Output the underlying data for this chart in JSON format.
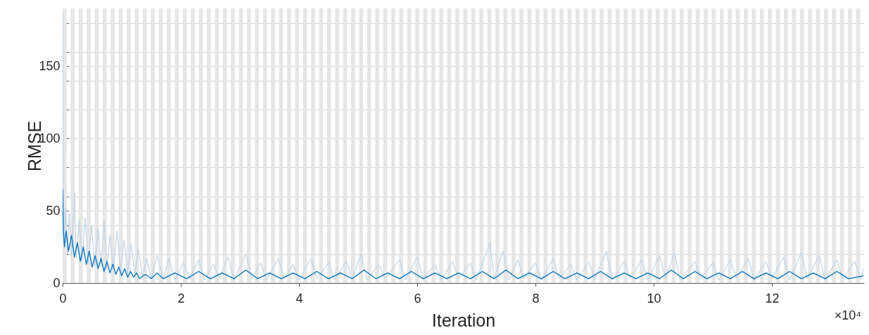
{
  "chart_data": {
    "type": "line",
    "xlabel": "Iteration",
    "ylabel": "RMSE",
    "xlim": [
      0,
      13.56
    ],
    "ylim": [
      0,
      190
    ],
    "xticks": [
      0,
      2,
      4,
      6,
      8,
      10,
      12
    ],
    "annotations": [
      "×10⁴"
    ],
    "yticks": [
      0,
      {
        "value": 20,
        "label": null
      },
      {
        "value": 40,
        "label": null
      },
      50,
      {
        "value": 60,
        "label": null
      },
      {
        "value": 80,
        "label": null
      },
      100,
      {
        "value": 120,
        "label": null
      },
      {
        "value": 140,
        "label": null
      },
      150,
      {
        "value": 160,
        "label": null
      },
      {
        "value": 180,
        "label": null
      }
    ],
    "grid": "y",
    "marker": "none",
    "line_style": "solid",
    "bands": [
      {
        "axis": "x",
        "from": 0,
        "to": 0.0678,
        "color": "#e6e6e6"
      },
      {
        "axis": "x",
        "from": 0.1356,
        "to": 0.2034,
        "color": "#e6e6e6"
      },
      {
        "axis": "x",
        "from": 0.2712,
        "to": 0.339,
        "color": "#e6e6e6"
      },
      {
        "axis": "x",
        "from": 0.4068,
        "to": 0.4746,
        "color": "#e6e6e6"
      },
      {
        "axis": "x",
        "from": 0.5424,
        "to": 0.6102,
        "color": "#e6e6e6"
      },
      {
        "axis": "x",
        "from": 0.678,
        "to": 0.7458,
        "color": "#e6e6e6"
      },
      {
        "axis": "x",
        "from": 0.8136,
        "to": 0.8814,
        "color": "#e6e6e6"
      },
      {
        "axis": "x",
        "from": 0.9492,
        "to": 1.017,
        "color": "#e6e6e6"
      },
      {
        "axis": "x",
        "from": 1.0848,
        "to": 1.1526,
        "color": "#e6e6e6"
      },
      {
        "axis": "x",
        "from": 1.2204,
        "to": 1.2882,
        "color": "#e6e6e6"
      },
      {
        "axis": "x",
        "from": 1.356,
        "to": 1.4238,
        "color": "#e6e6e6"
      },
      {
        "axis": "x",
        "from": 1.4916,
        "to": 1.5594,
        "color": "#e6e6e6"
      },
      {
        "axis": "x",
        "from": 1.6272,
        "to": 1.695,
        "color": "#e6e6e6"
      },
      {
        "axis": "x",
        "from": 1.7628,
        "to": 1.8306,
        "color": "#e6e6e6"
      },
      {
        "axis": "x",
        "from": 1.8984,
        "to": 1.9662,
        "color": "#e6e6e6"
      },
      {
        "axis": "x",
        "from": 2.034,
        "to": 2.1018,
        "color": "#e6e6e6"
      },
      {
        "axis": "x",
        "from": 2.1696,
        "to": 2.2374,
        "color": "#e6e6e6"
      },
      {
        "axis": "x",
        "from": 2.3052,
        "to": 2.373,
        "color": "#e6e6e6"
      },
      {
        "axis": "x",
        "from": 2.4408,
        "to": 2.5086,
        "color": "#e6e6e6"
      },
      {
        "axis": "x",
        "from": 2.5764,
        "to": 2.6442,
        "color": "#e6e6e6"
      },
      {
        "axis": "x",
        "from": 2.712,
        "to": 2.7798,
        "color": "#e6e6e6"
      },
      {
        "axis": "x",
        "from": 2.8476,
        "to": 2.9154,
        "color": "#e6e6e6"
      },
      {
        "axis": "x",
        "from": 2.9832,
        "to": 3.051,
        "color": "#e6e6e6"
      },
      {
        "axis": "x",
        "from": 3.1188,
        "to": 3.1866,
        "color": "#e6e6e6"
      },
      {
        "axis": "x",
        "from": 3.2544,
        "to": 3.3222,
        "color": "#e6e6e6"
      },
      {
        "axis": "x",
        "from": 3.39,
        "to": 3.4578,
        "color": "#e6e6e6"
      },
      {
        "axis": "x",
        "from": 3.5256,
        "to": 3.5934,
        "color": "#e6e6e6"
      },
      {
        "axis": "x",
        "from": 3.6612,
        "to": 3.729,
        "color": "#e6e6e6"
      },
      {
        "axis": "x",
        "from": 3.7968,
        "to": 3.8646,
        "color": "#e6e6e6"
      },
      {
        "axis": "x",
        "from": 3.9324,
        "to": 4.0002,
        "color": "#e6e6e6"
      },
      {
        "axis": "x",
        "from": 4.068,
        "to": 4.1358,
        "color": "#e6e6e6"
      },
      {
        "axis": "x",
        "from": 4.2036,
        "to": 4.2714,
        "color": "#e6e6e6"
      },
      {
        "axis": "x",
        "from": 4.3392,
        "to": 4.407,
        "color": "#e6e6e6"
      },
      {
        "axis": "x",
        "from": 4.4748,
        "to": 4.5426,
        "color": "#e6e6e6"
      },
      {
        "axis": "x",
        "from": 4.6104,
        "to": 4.6782,
        "color": "#e6e6e6"
      },
      {
        "axis": "x",
        "from": 4.746,
        "to": 4.8138,
        "color": "#e6e6e6"
      },
      {
        "axis": "x",
        "from": 4.8816,
        "to": 4.9494,
        "color": "#e6e6e6"
      },
      {
        "axis": "x",
        "from": 5.0172,
        "to": 5.085,
        "color": "#e6e6e6"
      },
      {
        "axis": "x",
        "from": 5.1528,
        "to": 5.2206,
        "color": "#e6e6e6"
      },
      {
        "axis": "x",
        "from": 5.2884,
        "to": 5.3562,
        "color": "#e6e6e6"
      },
      {
        "axis": "x",
        "from": 5.424,
        "to": 5.4918,
        "color": "#e6e6e6"
      },
      {
        "axis": "x",
        "from": 5.5596,
        "to": 5.6274,
        "color": "#e6e6e6"
      },
      {
        "axis": "x",
        "from": 5.6952,
        "to": 5.763,
        "color": "#e6e6e6"
      },
      {
        "axis": "x",
        "from": 5.8308,
        "to": 5.8986,
        "color": "#e6e6e6"
      },
      {
        "axis": "x",
        "from": 5.9664,
        "to": 6.0342,
        "color": "#e6e6e6"
      },
      {
        "axis": "x",
        "from": 6.102,
        "to": 6.1698,
        "color": "#e6e6e6"
      },
      {
        "axis": "x",
        "from": 6.2376,
        "to": 6.3054,
        "color": "#e6e6e6"
      },
      {
        "axis": "x",
        "from": 6.3732,
        "to": 6.441,
        "color": "#e6e6e6"
      },
      {
        "axis": "x",
        "from": 6.5088,
        "to": 6.5766,
        "color": "#e6e6e6"
      },
      {
        "axis": "x",
        "from": 6.6444,
        "to": 6.7122,
        "color": "#e6e6e6"
      },
      {
        "axis": "x",
        "from": 6.78,
        "to": 6.8478,
        "color": "#e6e6e6"
      },
      {
        "axis": "x",
        "from": 6.9156,
        "to": 6.9834,
        "color": "#e6e6e6"
      },
      {
        "axis": "x",
        "from": 7.0512,
        "to": 7.119,
        "color": "#e6e6e6"
      },
      {
        "axis": "x",
        "from": 7.1868,
        "to": 7.2546,
        "color": "#e6e6e6"
      },
      {
        "axis": "x",
        "from": 7.3224,
        "to": 7.3902,
        "color": "#e6e6e6"
      },
      {
        "axis": "x",
        "from": 7.458,
        "to": 7.5258,
        "color": "#e6e6e6"
      },
      {
        "axis": "x",
        "from": 7.5936,
        "to": 7.6614,
        "color": "#e6e6e6"
      },
      {
        "axis": "x",
        "from": 7.7292,
        "to": 7.797,
        "color": "#e6e6e6"
      },
      {
        "axis": "x",
        "from": 7.8648,
        "to": 7.9326,
        "color": "#e6e6e6"
      },
      {
        "axis": "x",
        "from": 8.0004,
        "to": 8.0682,
        "color": "#e6e6e6"
      },
      {
        "axis": "x",
        "from": 8.136,
        "to": 8.2038,
        "color": "#e6e6e6"
      },
      {
        "axis": "x",
        "from": 8.2716,
        "to": 8.3394,
        "color": "#e6e6e6"
      },
      {
        "axis": "x",
        "from": 8.4072,
        "to": 8.475,
        "color": "#e6e6e6"
      },
      {
        "axis": "x",
        "from": 8.5428,
        "to": 8.6106,
        "color": "#e6e6e6"
      },
      {
        "axis": "x",
        "from": 8.6784,
        "to": 8.7462,
        "color": "#e6e6e6"
      },
      {
        "axis": "x",
        "from": 8.814,
        "to": 8.8818,
        "color": "#e6e6e6"
      },
      {
        "axis": "x",
        "from": 8.9496,
        "to": 9.0174,
        "color": "#e6e6e6"
      },
      {
        "axis": "x",
        "from": 9.0852,
        "to": 9.153,
        "color": "#e6e6e6"
      },
      {
        "axis": "x",
        "from": 9.2208,
        "to": 9.2886,
        "color": "#e6e6e6"
      },
      {
        "axis": "x",
        "from": 9.3564,
        "to": 9.4242,
        "color": "#e6e6e6"
      },
      {
        "axis": "x",
        "from": 9.492,
        "to": 9.5598,
        "color": "#e6e6e6"
      },
      {
        "axis": "x",
        "from": 9.6276,
        "to": 9.6954,
        "color": "#e6e6e6"
      },
      {
        "axis": "x",
        "from": 9.7632,
        "to": 9.831,
        "color": "#e6e6e6"
      },
      {
        "axis": "x",
        "from": 9.8988,
        "to": 9.9666,
        "color": "#e6e6e6"
      },
      {
        "axis": "x",
        "from": 10.0344,
        "to": 10.1022,
        "color": "#e6e6e6"
      },
      {
        "axis": "x",
        "from": 10.17,
        "to": 10.2378,
        "color": "#e6e6e6"
      },
      {
        "axis": "x",
        "from": 10.3056,
        "to": 10.3734,
        "color": "#e6e6e6"
      },
      {
        "axis": "x",
        "from": 10.4412,
        "to": 10.509,
        "color": "#e6e6e6"
      },
      {
        "axis": "x",
        "from": 10.5768,
        "to": 10.6446,
        "color": "#e6e6e6"
      },
      {
        "axis": "x",
        "from": 10.7124,
        "to": 10.7802,
        "color": "#e6e6e6"
      },
      {
        "axis": "x",
        "from": 10.848,
        "to": 10.9158,
        "color": "#e6e6e6"
      },
      {
        "axis": "x",
        "from": 10.9836,
        "to": 11.0514,
        "color": "#e6e6e6"
      },
      {
        "axis": "x",
        "from": 11.1192,
        "to": 11.187,
        "color": "#e6e6e6"
      },
      {
        "axis": "x",
        "from": 11.2548,
        "to": 11.3226,
        "color": "#e6e6e6"
      },
      {
        "axis": "x",
        "from": 11.3904,
        "to": 11.4582,
        "color": "#e6e6e6"
      },
      {
        "axis": "x",
        "from": 11.526,
        "to": 11.5938,
        "color": "#e6e6e6"
      },
      {
        "axis": "x",
        "from": 11.6616,
        "to": 11.7294,
        "color": "#e6e6e6"
      },
      {
        "axis": "x",
        "from": 11.7972,
        "to": 11.865,
        "color": "#e6e6e6"
      },
      {
        "axis": "x",
        "from": 11.9328,
        "to": 12.0006,
        "color": "#e6e6e6"
      },
      {
        "axis": "x",
        "from": 12.0684,
        "to": 12.1362,
        "color": "#e6e6e6"
      },
      {
        "axis": "x",
        "from": 12.204,
        "to": 12.2718,
        "color": "#e6e6e6"
      },
      {
        "axis": "x",
        "from": 12.3396,
        "to": 12.4074,
        "color": "#e6e6e6"
      },
      {
        "axis": "x",
        "from": 12.4752,
        "to": 12.543,
        "color": "#e6e6e6"
      },
      {
        "axis": "x",
        "from": 12.6108,
        "to": 12.6786,
        "color": "#e6e6e6"
      },
      {
        "axis": "x",
        "from": 12.7464,
        "to": 12.8142,
        "color": "#e6e6e6"
      },
      {
        "axis": "x",
        "from": 12.882,
        "to": 12.9498,
        "color": "#e6e6e6"
      },
      {
        "axis": "x",
        "from": 13.0176,
        "to": 13.0854,
        "color": "#e6e6e6"
      },
      {
        "axis": "x",
        "from": 13.1532,
        "to": 13.221,
        "color": "#e6e6e6"
      },
      {
        "axis": "x",
        "from": 13.2888,
        "to": 13.3566,
        "color": "#e6e6e6"
      },
      {
        "axis": "x",
        "from": 13.4244,
        "to": 13.4922,
        "color": "#e6e6e6"
      }
    ],
    "series": [
      {
        "color": "#b7cfe5",
        "x": [
          0,
          0.015,
          0.03,
          0.05,
          0.08,
          0.11,
          0.15,
          0.2,
          0.23,
          0.28,
          0.33,
          0.38,
          0.43,
          0.49,
          0.54,
          0.6,
          0.65,
          0.7,
          0.75,
          0.8,
          0.86,
          0.92,
          0.98,
          1.04,
          1.1,
          1.16,
          1.22,
          1.28,
          1.35,
          1.42,
          1.5,
          1.6,
          1.7,
          1.8,
          1.9,
          2.05,
          2.15,
          2.3,
          2.4,
          2.55,
          2.65,
          2.8,
          2.9,
          3.1,
          3.2,
          3.35,
          3.45,
          3.65,
          3.75,
          3.9,
          4,
          4.2,
          4.3,
          4.5,
          4.6,
          4.8,
          4.9,
          5.05,
          5.15,
          5.35,
          5.45,
          5.7,
          5.8,
          6,
          6.1,
          6.3,
          6.4,
          6.6,
          6.7,
          6.9,
          7,
          7.23,
          7.3,
          7.45,
          7.55,
          7.7,
          7.8,
          8,
          8.1,
          8.3,
          8.4,
          8.6,
          8.7,
          8.9,
          9,
          9.2,
          9.3,
          9.5,
          9.6,
          9.8,
          9.9,
          10.1,
          10.2,
          10.35,
          10.45,
          10.7,
          10.8,
          11,
          11.1,
          11.3,
          11.4,
          11.6,
          11.7,
          11.9,
          12,
          12.2,
          12.3,
          12.5,
          12.6,
          12.8,
          12.9,
          13.1,
          13.2,
          13.4,
          13.5,
          13.55
        ],
        "values": [
          187,
          60,
          30,
          52,
          20,
          48,
          18,
          62,
          17,
          44,
          15,
          45,
          14,
          40,
          12,
          38,
          11,
          43,
          10,
          33,
          9,
          36,
          8,
          30,
          7,
          27,
          6,
          24,
          4,
          17,
          3,
          19,
          3,
          17,
          2,
          14,
          3,
          16,
          2,
          13,
          3,
          18,
          2,
          20,
          3,
          14,
          2,
          17,
          3,
          13,
          2,
          17,
          3,
          14,
          2,
          15,
          3,
          20,
          2,
          13,
          3,
          16,
          2,
          18,
          3,
          13,
          2,
          15,
          3,
          14,
          2,
          28,
          3,
          22,
          2,
          16,
          3,
          14,
          2,
          17,
          3,
          13,
          2,
          15,
          3,
          22,
          2,
          15,
          3,
          16,
          2,
          19,
          3,
          21,
          2,
          15,
          3,
          14,
          2,
          16,
          3,
          17,
          2,
          15,
          3,
          18,
          2,
          21,
          3,
          19,
          2,
          16,
          3,
          15,
          3,
          10
        ]
      },
      {
        "color": "#0072bd",
        "x": [
          0,
          0.01,
          0.03,
          0.06,
          0.1,
          0.15,
          0.2,
          0.25,
          0.3,
          0.35,
          0.4,
          0.45,
          0.5,
          0.55,
          0.6,
          0.65,
          0.7,
          0.75,
          0.8,
          0.85,
          0.9,
          0.95,
          1,
          1.05,
          1.1,
          1.15,
          1.2,
          1.25,
          1.3,
          1.4,
          1.5,
          1.6,
          1.7,
          1.9,
          2.1,
          2.3,
          2.5,
          2.7,
          2.9,
          3.1,
          3.3,
          3.5,
          3.7,
          3.9,
          4.1,
          4.3,
          4.5,
          4.7,
          4.9,
          5.1,
          5.3,
          5.5,
          5.7,
          5.9,
          6.1,
          6.3,
          6.5,
          6.7,
          6.9,
          7.1,
          7.3,
          7.5,
          7.7,
          7.9,
          8.1,
          8.3,
          8.5,
          8.7,
          8.9,
          9.1,
          9.3,
          9.5,
          9.7,
          9.9,
          10.1,
          10.3,
          10.5,
          10.7,
          10.9,
          11.1,
          11.3,
          11.5,
          11.7,
          11.9,
          12.1,
          12.3,
          12.5,
          12.7,
          12.9,
          13.1,
          13.3,
          13.55
        ],
        "values": [
          65,
          38,
          25,
          36,
          22,
          33,
          18,
          28,
          15,
          25,
          13,
          22,
          11,
          19,
          10,
          17,
          8,
          15,
          7,
          13,
          6,
          11,
          5,
          10,
          4,
          8,
          4,
          7,
          3,
          6,
          3,
          7,
          3,
          7,
          3,
          8,
          3,
          7,
          3,
          9,
          3,
          7,
          3,
          7,
          3,
          8,
          3,
          7,
          3,
          9,
          3,
          7,
          3,
          8,
          3,
          7,
          3,
          7,
          3,
          8,
          3,
          9,
          3,
          7,
          3,
          8,
          3,
          7,
          3,
          8,
          3,
          7,
          3,
          7,
          3,
          9,
          3,
          8,
          3,
          7,
          3,
          8,
          3,
          7,
          3,
          8,
          3,
          7,
          3,
          8,
          3,
          5
        ]
      }
    ]
  }
}
